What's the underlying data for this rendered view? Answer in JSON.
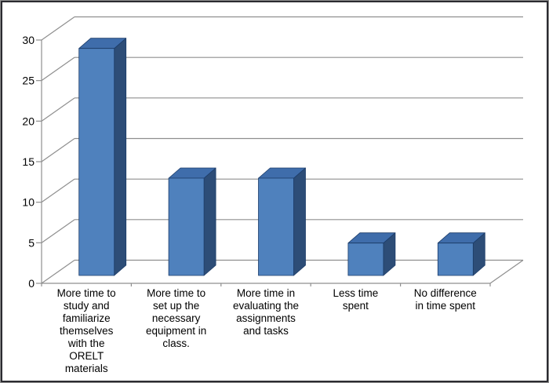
{
  "window": {
    "background": "#ffffff",
    "frame_border_inner_color": "#2b2b30",
    "frame_border_outer_color": "#8f8f8f"
  },
  "chart_data": {
    "type": "bar",
    "style": "3d-column",
    "title": "",
    "xlabel": "",
    "ylabel": "",
    "categories": [
      "More time to study and familiarize themselves with the ORELT materials",
      "More time to set up the necessary equipment in class.",
      "More time in evaluating the assignments and tasks",
      "Less time spent",
      "No difference in time spent"
    ],
    "category_label_lines": [
      [
        "More time to",
        "study and",
        "familiarize",
        "themselves",
        "with the",
        "ORELT",
        "materials"
      ],
      [
        "More time to",
        "set up the",
        "necessary",
        "equipment in",
        "class."
      ],
      [
        "More time in",
        "evaluating the",
        "assignments",
        "and tasks"
      ],
      [
        "Less time",
        "spent"
      ],
      [
        "No difference",
        "in time spent"
      ]
    ],
    "values": [
      28,
      12,
      12,
      4,
      4
    ],
    "ylim": [
      0,
      30
    ],
    "yticks": [
      0,
      5,
      10,
      15,
      20,
      25,
      30
    ],
    "grid": true,
    "legend_position": "none",
    "colors": {
      "bar_front": "#4f81bd",
      "bar_top": "#3f6dab",
      "bar_side": "#2d4d77",
      "bar_outline": "#1c3c69",
      "gridline": "#8f8f8f",
      "axis": "#8f8f8f",
      "label_text": "#000000"
    }
  }
}
